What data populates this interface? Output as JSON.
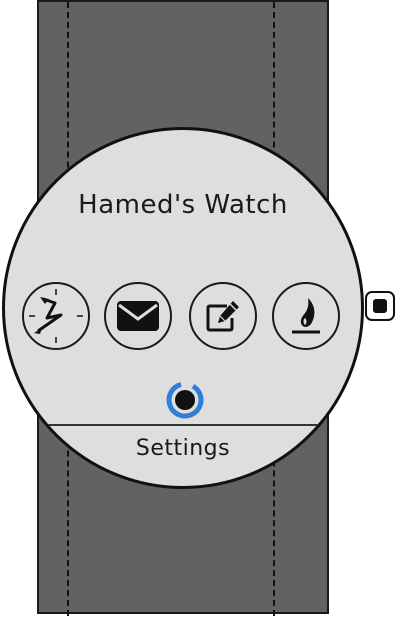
{
  "watch": {
    "title": "Hamed's Watch",
    "apps": [
      {
        "name": "clock",
        "icon": "clock-icon"
      },
      {
        "name": "mail",
        "icon": "envelope-icon"
      },
      {
        "name": "notes",
        "icon": "edit-icon"
      },
      {
        "name": "fire",
        "icon": "flame-icon"
      }
    ],
    "loading_indicator": {
      "color": "#2e7fd8",
      "icon": "spinner-icon"
    },
    "settings_label": "Settings"
  },
  "colors": {
    "strap": "#626262",
    "face": "#dedede",
    "accent": "#2e7fd8"
  }
}
